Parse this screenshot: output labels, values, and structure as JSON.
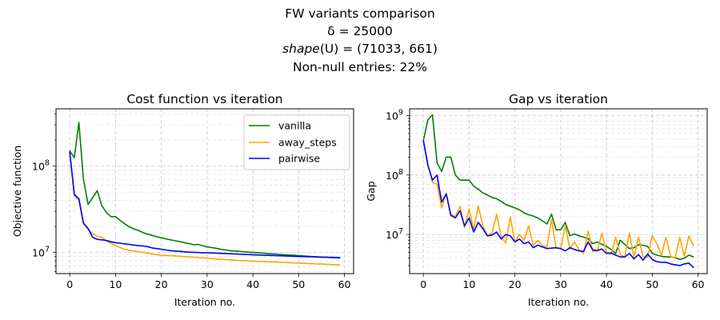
{
  "figure": {
    "title_lines": [
      "FW variants comparison",
      "δ = 25000",
      "shape(U) = (71033, 661)",
      "Non-null entries: 22%"
    ]
  },
  "chart_data": [
    {
      "type": "line",
      "title": "Cost function vs iteration",
      "xlabel": "Iteration no.",
      "ylabel": "Objective function",
      "yscale": "log",
      "xlim": [
        -3,
        62
      ],
      "ylim": [
        5700000.0,
        460000000.0
      ],
      "xticks": [
        0,
        10,
        20,
        30,
        40,
        50,
        60
      ],
      "yticks": [
        {
          "value": 10000000.0,
          "label": "10^7"
        },
        {
          "value": 100000000.0,
          "label": "10^8"
        }
      ],
      "grid": true,
      "legend": {
        "position": "top-right"
      },
      "x": [
        0,
        1,
        2,
        3,
        4,
        5,
        6,
        7,
        8,
        9,
        10,
        11,
        12,
        13,
        14,
        15,
        16,
        17,
        18,
        19,
        20,
        21,
        22,
        23,
        24,
        25,
        26,
        27,
        28,
        29,
        30,
        31,
        32,
        33,
        34,
        35,
        36,
        37,
        38,
        39,
        40,
        41,
        42,
        43,
        44,
        45,
        46,
        47,
        48,
        49,
        50,
        51,
        52,
        53,
        54,
        55,
        56,
        57,
        58,
        59
      ],
      "series": [
        {
          "name": "vanilla",
          "color": "#008000",
          "values": [
            150000000,
            125000000,
            320000000,
            70000000,
            36000000,
            43000000,
            52000000,
            35000000,
            29000000,
            26000000,
            26000000,
            23500000,
            21500000,
            19800000,
            18800000,
            18000000,
            17000000,
            16300000,
            15800000,
            15200000,
            14800000,
            14400000,
            14000000,
            13700000,
            13400000,
            13000000,
            12700000,
            12300000,
            12400000,
            12000000,
            11600000,
            11400000,
            11200000,
            10900000,
            10700000,
            10500000,
            10400000,
            10300000,
            10200000,
            10100000,
            10000000,
            9950000,
            9850000,
            9750000,
            9650000,
            9580000,
            9500000,
            9430000,
            9350000,
            9280000,
            9200000,
            9120000,
            9050000,
            8980000,
            8910000,
            8850000,
            8800000,
            8750000,
            8700000,
            8650000
          ]
        },
        {
          "name": "away_steps",
          "color": "#FFA500",
          "values": [
            140000000,
            45000000,
            40000000,
            21500000,
            18500000,
            16500000,
            15500000,
            15000000,
            13500000,
            12800000,
            12000000,
            11400000,
            10900000,
            10600000,
            10400000,
            10200000,
            10000000,
            9850000,
            9650000,
            9450000,
            9300000,
            9250000,
            9200000,
            9150000,
            9050000,
            8950000,
            8900000,
            8850000,
            8750000,
            8650000,
            8600000,
            8500000,
            8420000,
            8350000,
            8280000,
            8220000,
            8150000,
            8100000,
            8050000,
            8000000,
            7950000,
            7900000,
            7860000,
            7820000,
            7780000,
            7740000,
            7700000,
            7660000,
            7620000,
            7580000,
            7540000,
            7500000,
            7460000,
            7420000,
            7380000,
            7340000,
            7300000,
            7260000,
            7220000,
            7180000
          ]
        },
        {
          "name": "pairwise",
          "color": "#0000FF",
          "values": [
            145000000,
            47000000,
            42000000,
            22000000,
            19000000,
            15000000,
            14200000,
            14000000,
            13800000,
            13300000,
            13000000,
            12800000,
            12600000,
            12400000,
            12200000,
            12000000,
            11900000,
            11700000,
            11300000,
            11100000,
            10900000,
            10700000,
            10500000,
            10400000,
            10300000,
            10200000,
            10100000,
            10050000,
            10000000,
            9950000,
            9900000,
            9870000,
            9830000,
            9780000,
            9730000,
            9680000,
            9620000,
            9570000,
            9520000,
            9470000,
            9420000,
            9370000,
            9320000,
            9280000,
            9240000,
            9200000,
            9160000,
            9120000,
            9080000,
            9040000,
            9000000,
            8970000,
            8940000,
            8910000,
            8880000,
            8850000,
            8820000,
            8790000,
            8760000,
            8730000
          ]
        }
      ]
    },
    {
      "type": "line",
      "title": "Gap vs iteration",
      "xlabel": "Iteration no.",
      "ylabel": "Gap",
      "yscale": "log",
      "xlim": [
        -3,
        62
      ],
      "ylim": [
        2200000.0,
        1300000000.0
      ],
      "xticks": [
        0,
        10,
        20,
        30,
        40,
        50,
        60
      ],
      "yticks": [
        {
          "value": 10000000.0,
          "label": "10^7"
        },
        {
          "value": 100000000.0,
          "label": "10^8"
        },
        {
          "value": 1000000000.0,
          "label": "10^9"
        }
      ],
      "grid": true,
      "x": [
        0,
        1,
        2,
        3,
        4,
        5,
        6,
        7,
        8,
        9,
        10,
        11,
        12,
        13,
        14,
        15,
        16,
        17,
        18,
        19,
        20,
        21,
        22,
        23,
        24,
        25,
        26,
        27,
        28,
        29,
        30,
        31,
        32,
        33,
        34,
        35,
        36,
        37,
        38,
        39,
        40,
        41,
        42,
        43,
        44,
        45,
        46,
        47,
        48,
        49,
        50,
        51,
        52,
        53,
        54,
        55,
        56,
        57,
        58,
        59
      ],
      "series": [
        {
          "name": "vanilla",
          "color": "#008000",
          "values": [
            380000000,
            850000000,
            1030000000,
            160000000,
            115000000,
            200000000,
            200000000,
            100000000,
            82000000,
            82000000,
            82000000,
            65000000,
            58000000,
            50000000,
            46000000,
            42000000,
            40000000,
            36000000,
            32000000,
            30000000,
            28000000,
            26000000,
            23000000,
            21500000,
            20500000,
            19000000,
            17000000,
            15000000,
            22000000,
            12000000,
            12000000,
            16000000,
            9500000,
            10200000,
            9500000,
            9000000,
            8500000,
            7000000,
            7500000,
            6800000,
            6300000,
            5600000,
            4800000,
            8000000,
            6800000,
            5800000,
            6000000,
            6700000,
            6600000,
            6300000,
            4800000,
            4500000,
            4300000,
            4200000,
            4200000,
            4100000,
            3800000,
            4000000,
            4500000,
            4200000
          ]
        },
        {
          "name": "away_steps",
          "color": "#FFA500",
          "values": [
            390000000,
            150000000,
            75000000,
            70000000,
            28000000,
            50000000,
            22000000,
            20000000,
            30000000,
            13000000,
            27000000,
            12000000,
            30000000,
            14000000,
            9500000,
            10500000,
            22000000,
            9000000,
            7200000,
            20000000,
            7500000,
            10000000,
            8000000,
            14000000,
            6500000,
            8000000,
            6500000,
            6200000,
            18000000,
            5800000,
            5800000,
            14000000,
            5800000,
            7500000,
            5500000,
            4800000,
            11500000,
            5200000,
            5200000,
            10500000,
            5000000,
            4600000,
            9000000,
            4600000,
            4200000,
            10500000,
            4200000,
            9000000,
            4200000,
            4200000,
            9500000,
            7000000,
            4500000,
            9000000,
            4300000,
            4000000,
            9000000,
            4300000,
            9500000,
            6500000
          ]
        },
        {
          "name": "pairwise",
          "color": "#0000FF",
          "values": [
            380000000,
            145000000,
            82000000,
            100000000,
            35000000,
            48000000,
            21000000,
            19000000,
            25000000,
            14000000,
            19000000,
            11000000,
            16000000,
            12500000,
            9500000,
            9800000,
            11000000,
            8400000,
            10000000,
            9500000,
            7500000,
            8400000,
            7000000,
            7500000,
            6000000,
            6600000,
            6200000,
            5800000,
            5900000,
            6000000,
            5800000,
            5300000,
            6000000,
            5600000,
            5300000,
            5200000,
            7500000,
            5500000,
            5400000,
            5700000,
            4800000,
            4900000,
            4500000,
            4200000,
            4200000,
            4800000,
            3900000,
            4600000,
            3700000,
            4700000,
            3800000,
            3500000,
            3400000,
            3400000,
            3200000,
            3100000,
            3000000,
            3200000,
            3300000,
            2800000
          ]
        }
      ]
    }
  ]
}
